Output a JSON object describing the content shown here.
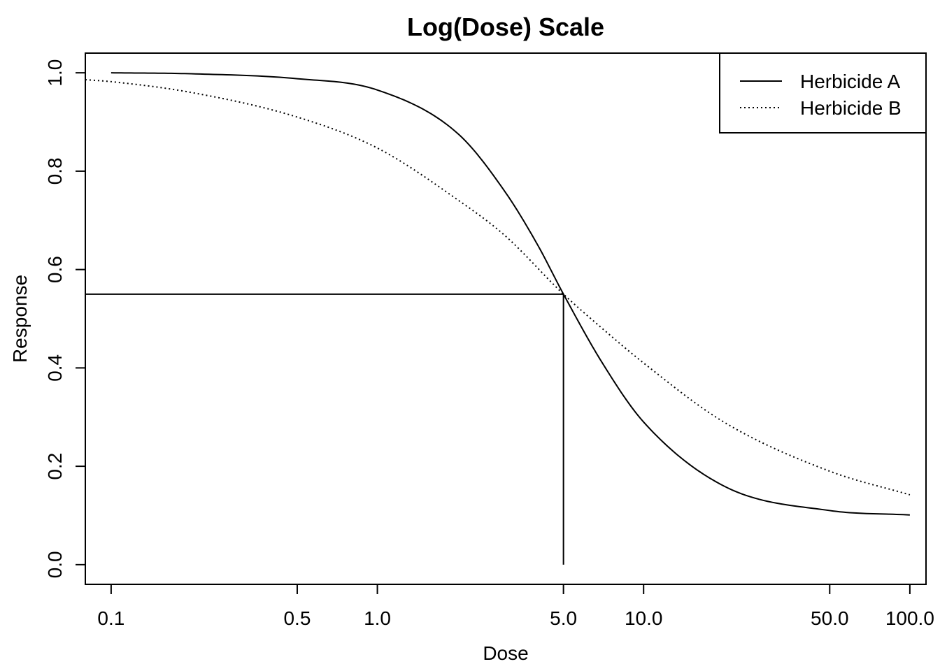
{
  "chart_data": {
    "type": "line",
    "title": "Log(Dose) Scale",
    "xlabel": "Dose",
    "ylabel": "Response",
    "x_scale": "log",
    "xlim": [
      0.08,
      115
    ],
    "ylim": [
      -0.04,
      1.04
    ],
    "x_ticks": [
      0.1,
      0.5,
      1.0,
      5.0,
      10.0,
      50.0,
      100.0
    ],
    "x_tick_labels": [
      "0.1",
      "0.5",
      "1.0",
      "5.0",
      "10.0",
      "50.0",
      "100.0"
    ],
    "y_ticks": [
      0.0,
      0.2,
      0.4,
      0.6,
      0.8,
      1.0
    ],
    "y_tick_labels": [
      "0.0",
      "0.2",
      "0.4",
      "0.6",
      "0.8",
      "1.0"
    ],
    "grid": false,
    "legend_position": "top-right",
    "series": [
      {
        "name": "Herbicide A",
        "line_style": "solid",
        "x": [
          0.1,
          0.2,
          0.5,
          1.0,
          2.0,
          3.0,
          4.0,
          5.0,
          7.0,
          10.0,
          20.0,
          50.0,
          100.0
        ],
        "y": [
          1.0,
          0.998,
          0.988,
          0.965,
          0.877,
          0.76,
          0.65,
          0.55,
          0.41,
          0.29,
          0.16,
          0.11,
          0.101
        ]
      },
      {
        "name": "Herbicide B",
        "line_style": "dotted",
        "x": [
          0.08,
          0.1,
          0.2,
          0.5,
          1.0,
          2.0,
          3.0,
          5.0,
          7.0,
          10.0,
          20.0,
          50.0,
          100.0
        ],
        "y": [
          0.986,
          0.982,
          0.96,
          0.91,
          0.847,
          0.742,
          0.67,
          0.55,
          0.48,
          0.41,
          0.29,
          0.19,
          0.142
        ]
      }
    ],
    "annotations": {
      "reference_x": 5.0,
      "reference_y": 0.55
    },
    "colors": {
      "line": "#000000",
      "background": "#ffffff"
    }
  }
}
